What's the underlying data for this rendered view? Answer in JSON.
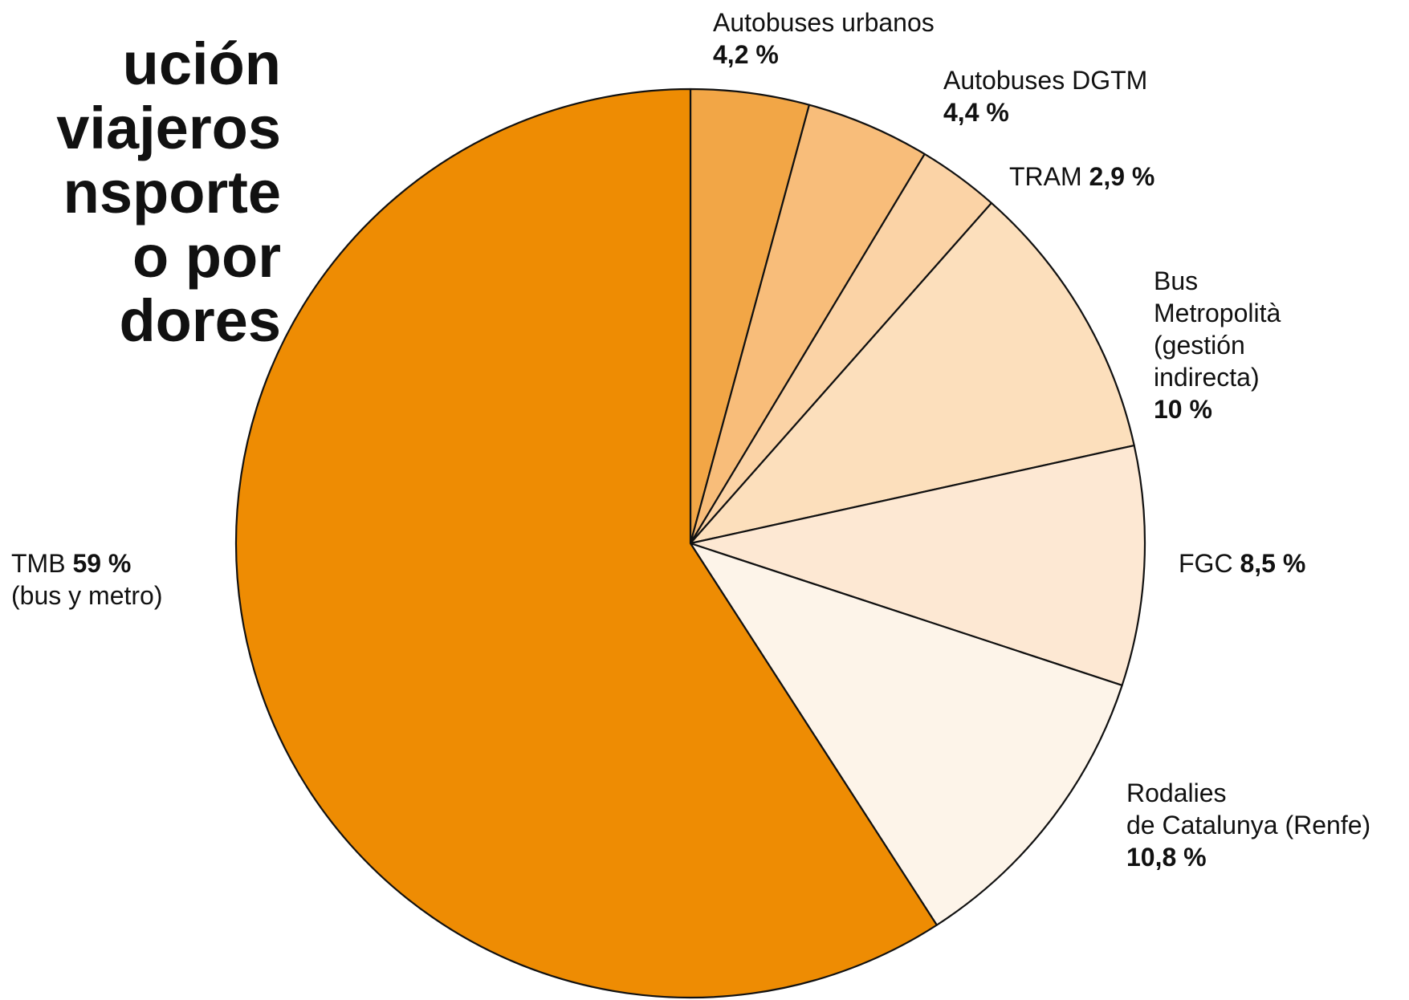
{
  "chart_data": {
    "type": "pie",
    "title_lines": [
      "ución",
      "viajeros",
      "nsporte",
      "o por",
      "dores"
    ],
    "start_angle_deg": 0,
    "direction": "clockwise",
    "stroke_color": "#111111",
    "slices": [
      {
        "name_lines": [
          "Autobuses urbanos"
        ],
        "value": 4.2,
        "value_label": "4,2 %",
        "color": "#F2A646"
      },
      {
        "name_lines": [
          "Autobuses DGTM"
        ],
        "value": 4.4,
        "value_label": "4,4 %",
        "color": "#F8BD7A"
      },
      {
        "name_lines": [
          "TRAM"
        ],
        "value": 2.9,
        "value_label": "2,9 %",
        "color": "#FBD3A6"
      },
      {
        "name_lines": [
          "Bus",
          "Metropolità",
          "(gestión",
          "indirecta)"
        ],
        "value": 10,
        "value_label": "10 %",
        "color": "#FCDFBC"
      },
      {
        "name_lines": [
          "FGC"
        ],
        "value": 8.5,
        "value_label": "8,5 %",
        "color": "#FDE8D3"
      },
      {
        "name_lines": [
          "Rodalies",
          "de Catalunya (Renfe)"
        ],
        "value": 10.8,
        "value_label": "10,8 %",
        "color": "#FDF4E9"
      },
      {
        "name_lines": [
          "TMB"
        ],
        "value": 59,
        "value_label": "59 %",
        "extra_line": "(bus y metro)",
        "color": "#EE8C03"
      }
    ]
  }
}
